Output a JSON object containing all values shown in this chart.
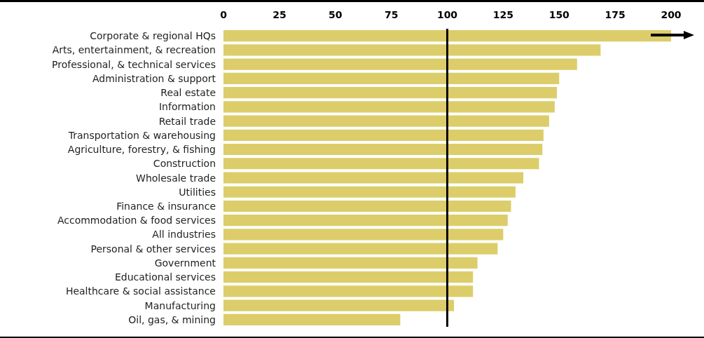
{
  "chart_data": {
    "type": "bar",
    "orientation": "horizontal",
    "categories": [
      "Corporate & regional HQs",
      "Arts, entertainment, & recreation",
      "Professional, & technical services",
      "Administration & support",
      "Real estate",
      "Information",
      "Retail trade",
      "Transportation & warehousing",
      "Agriculture, forestry, & fishing",
      "Construction",
      "Wholesale trade",
      "Utilities",
      "Finance & insurance",
      "Accommodation & food services",
      "All industries",
      "Personal & other services",
      "Government",
      "Educational services",
      "Healthcare & social assistance",
      "Manufacturing",
      "Oil, gas, & mining"
    ],
    "values": [
      200,
      168.5,
      158,
      150,
      149,
      148,
      145.5,
      143,
      142.5,
      141,
      134,
      130.5,
      128.5,
      127,
      125,
      122.5,
      113.5,
      111.5,
      111.5,
      103,
      79
    ],
    "color": "#dccd6a",
    "xlim": [
      0,
      200
    ],
    "xticks": [
      0,
      25,
      50,
      75,
      100,
      125,
      150,
      175,
      200
    ],
    "ref_lines": [
      {
        "axis": "x",
        "value": 100,
        "color": "#000000"
      }
    ]
  }
}
